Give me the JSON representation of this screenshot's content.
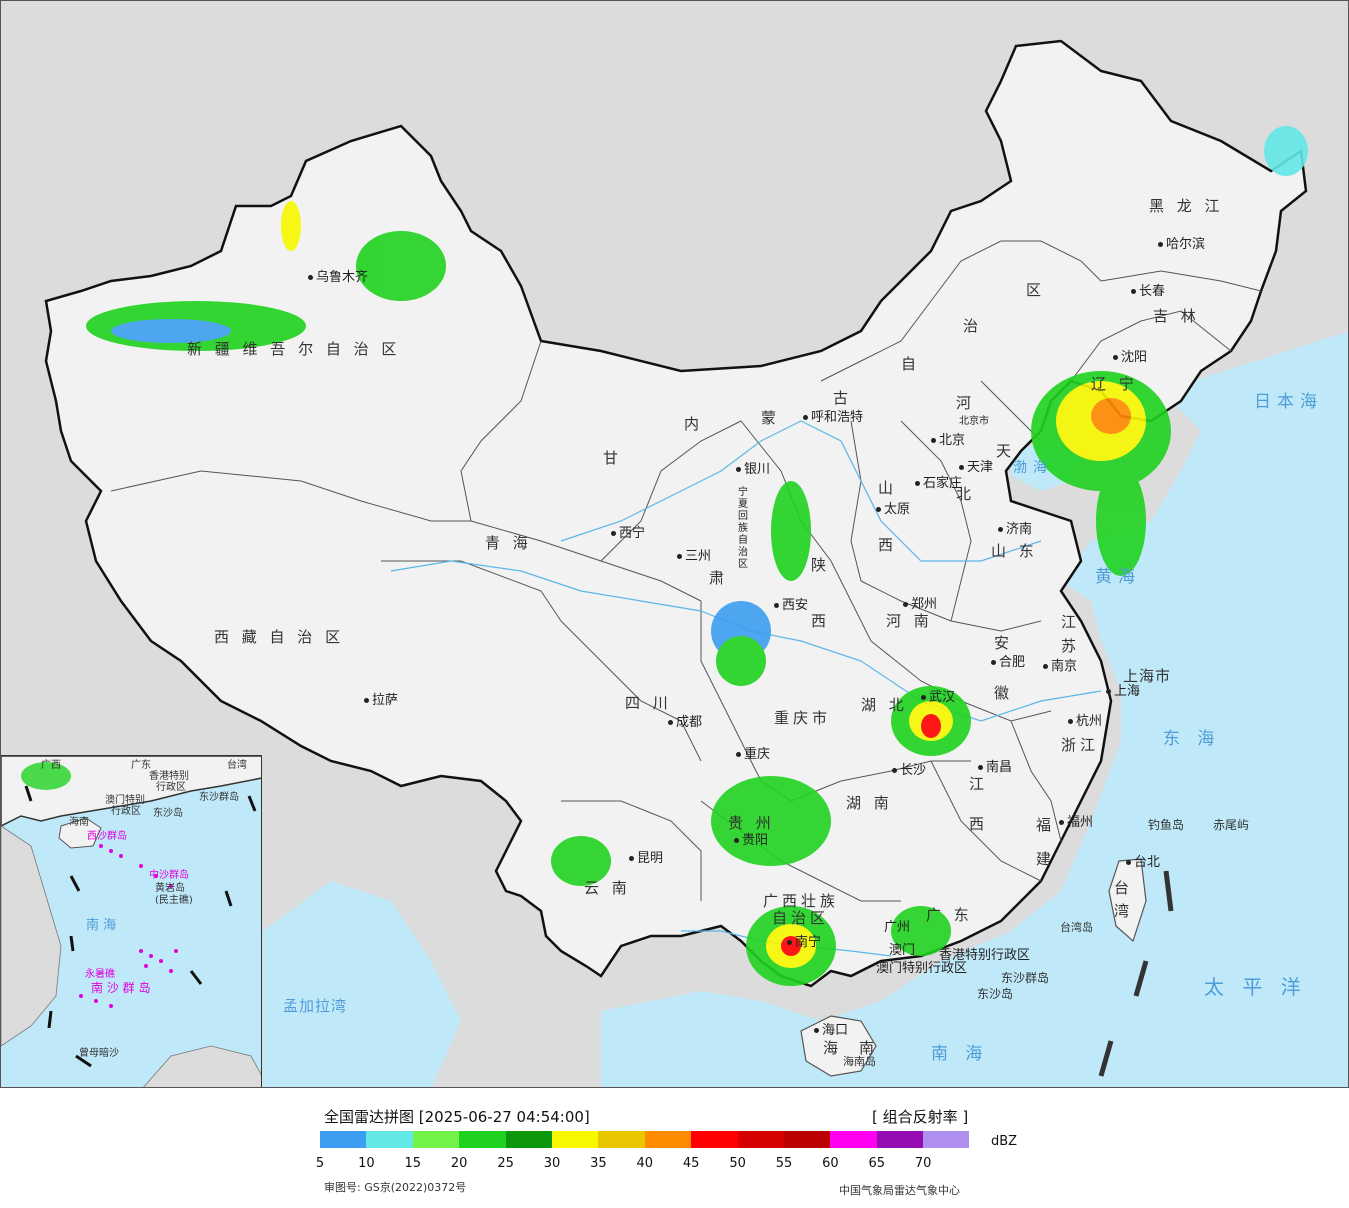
{
  "map": {
    "provinces": [
      {
        "key": "xinjiang",
        "text": "新 疆 维 吾 尔 自 治 区"
      },
      {
        "key": "xizang",
        "text": "西 藏 自 治 区"
      },
      {
        "key": "qinghai",
        "text": "青       海"
      },
      {
        "key": "gansu",
        "text": "甘"
      },
      {
        "key": "sichuan",
        "text": "四      川"
      },
      {
        "key": "yunnan",
        "text": "云      南"
      },
      {
        "key": "neimeng_1",
        "text": "内"
      },
      {
        "key": "neimeng_2",
        "text": "蒙"
      },
      {
        "key": "neimeng_3",
        "text": "古"
      },
      {
        "key": "neimeng_4",
        "text": "自"
      },
      {
        "key": "neimeng_5",
        "text": "治"
      },
      {
        "key": "neimeng_6",
        "text": "区"
      },
      {
        "key": "heilongjiang",
        "text": "黑  龙  江"
      },
      {
        "key": "jilin",
        "text": "吉   林"
      },
      {
        "key": "liaoning",
        "text": "辽  宁"
      },
      {
        "key": "hebei",
        "text": "河"
      },
      {
        "key": "hebei2",
        "text": "北"
      },
      {
        "key": "shanxi",
        "text": "山"
      },
      {
        "key": "shanxi2",
        "text": "西"
      },
      {
        "key": "shandong",
        "text": "山    东"
      },
      {
        "key": "henan",
        "text": "河    南"
      },
      {
        "key": "shaanxi",
        "text": "陕"
      },
      {
        "key": "shaanxi2",
        "text": "西"
      },
      {
        "key": "ningxia",
        "text": "宁夏回族自治区"
      },
      {
        "key": "chongqing",
        "text": "重庆市"
      },
      {
        "key": "hubei",
        "text": "湖     北"
      },
      {
        "key": "hunan",
        "text": "湖     南"
      },
      {
        "key": "guizhou",
        "text": "贵     州"
      },
      {
        "key": "guangxi",
        "text": "广西壮族"
      },
      {
        "key": "guangxi2",
        "text": "自治区"
      },
      {
        "key": "guangdong",
        "text": "广    东"
      },
      {
        "key": "jiangxi",
        "text": "江"
      },
      {
        "key": "jiangxi2",
        "text": "西"
      },
      {
        "key": "anhui",
        "text": "安"
      },
      {
        "key": "anhui2",
        "text": "徽"
      },
      {
        "key": "jiangsu",
        "text": "江"
      },
      {
        "key": "jiangsu2",
        "text": "苏"
      },
      {
        "key": "zhejiang",
        "text": "浙江"
      },
      {
        "key": "fujian",
        "text": "福"
      },
      {
        "key": "fujian2",
        "text": "建"
      },
      {
        "key": "taiwan",
        "text": "台"
      },
      {
        "key": "taiwan2",
        "text": "湾"
      },
      {
        "key": "hainan",
        "text": "海"
      },
      {
        "key": "hainan2",
        "text": "南"
      },
      {
        "key": "shanghai",
        "text": "上海市"
      },
      {
        "key": "tianjin",
        "text": "天"
      },
      {
        "key": "gansu2",
        "text": "肃"
      }
    ],
    "cities": [
      {
        "key": "urumqi",
        "text": "乌鲁木齐"
      },
      {
        "key": "lhasa",
        "text": "拉萨"
      },
      {
        "key": "xining",
        "text": "西宁"
      },
      {
        "key": "lanzhou",
        "text": "三州"
      },
      {
        "key": "yinchuan",
        "text": "银川"
      },
      {
        "key": "huhehaote",
        "text": "呼和浩特"
      },
      {
        "key": "beijing",
        "text": "北京"
      },
      {
        "key": "tianjin_c",
        "text": "天津"
      },
      {
        "key": "shijiazhuang",
        "text": "石家庄"
      },
      {
        "key": "taiyuan",
        "text": "太原"
      },
      {
        "key": "jinan",
        "text": "济南"
      },
      {
        "key": "zhengzhou",
        "text": "郑州"
      },
      {
        "key": "xian",
        "text": "西安"
      },
      {
        "key": "chengdu",
        "text": "成都"
      },
      {
        "key": "chongqing_c",
        "text": "重庆"
      },
      {
        "key": "guiyang",
        "text": "贵阳"
      },
      {
        "key": "kunming",
        "text": "昆明"
      },
      {
        "key": "nanning",
        "text": "南宁"
      },
      {
        "key": "guangzhou",
        "text": "广州"
      },
      {
        "key": "changsha",
        "text": "长沙"
      },
      {
        "key": "wuhan",
        "text": "武汉"
      },
      {
        "key": "hefei",
        "text": "合肥"
      },
      {
        "key": "nanjing",
        "text": "南京"
      },
      {
        "key": "shanghai_c",
        "text": "上海"
      },
      {
        "key": "hangzhou",
        "text": "杭州"
      },
      {
        "key": "nanchang",
        "text": "南昌"
      },
      {
        "key": "fuzhou",
        "text": "福州"
      },
      {
        "key": "taibei",
        "text": "台北"
      },
      {
        "key": "haikou",
        "text": "海口"
      },
      {
        "key": "shenyang",
        "text": "沈阳"
      },
      {
        "key": "changchun",
        "text": "长春"
      },
      {
        "key": "haerbin",
        "text": "哈尔滨"
      },
      {
        "key": "aomen",
        "text": "澳门"
      }
    ],
    "other_labels": [
      {
        "key": "hk_sar",
        "text": "香港特别行政区"
      },
      {
        "key": "macau_sar",
        "text": "澳门特别行政区"
      },
      {
        "key": "diaoyu",
        "text": "钓鱼岛"
      },
      {
        "key": "chiwei",
        "text": "赤尾屿"
      },
      {
        "key": "taiwan_isl",
        "text": "台湾岛"
      },
      {
        "key": "dongsha_qd",
        "text": "东沙群岛"
      },
      {
        "key": "dongsha",
        "text": "东沙岛"
      },
      {
        "key": "hainan_isl",
        "text": "海南岛"
      },
      {
        "key": "beijing_small",
        "text": "北京市"
      }
    ],
    "seas": [
      {
        "key": "riben",
        "text": "日本海"
      },
      {
        "key": "bohai",
        "text": "渤海"
      },
      {
        "key": "huanghai",
        "text": "黄海"
      },
      {
        "key": "donghai",
        "text": "东 海"
      },
      {
        "key": "taipingyang",
        "text": "太 平 洋"
      },
      {
        "key": "nanhai",
        "text": "南   海"
      },
      {
        "key": "mengjiala",
        "text": "孟加拉湾"
      }
    ],
    "inset_labels": [
      {
        "key": "i_hk",
        "text": "香港特别"
      },
      {
        "key": "i_hk2",
        "text": "行政区"
      },
      {
        "key": "i_macau",
        "text": "澳门特别"
      },
      {
        "key": "i_macau2",
        "text": "行政区"
      },
      {
        "key": "i_dongsha",
        "text": "东沙群岛"
      },
      {
        "key": "i_dongsha2",
        "text": "东沙岛"
      },
      {
        "key": "i_taiwan",
        "text": "台湾"
      },
      {
        "key": "i_hainan",
        "text": "海南"
      },
      {
        "key": "i_xisha",
        "text": "西沙群岛"
      },
      {
        "key": "i_zhongsha",
        "text": "中沙群岛"
      },
      {
        "key": "i_huangyan",
        "text": "黄岩岛"
      },
      {
        "key": "i_minzhu",
        "text": "(民主礁)"
      },
      {
        "key": "i_nanhai",
        "text": "南  海"
      },
      {
        "key": "i_nansha",
        "text": "南 沙 群 岛"
      },
      {
        "key": "i_yongshu",
        "text": "永暑礁"
      },
      {
        "key": "i_zengmu",
        "text": "曾母暗沙"
      },
      {
        "key": "i_guangdong",
        "text": "广东"
      },
      {
        "key": "i_guangxi",
        "text": "广西"
      }
    ]
  },
  "legend": {
    "title": "全国雷达拼图 [2025-06-27 04:54:00]",
    "product": "[ 组合反射率 ]",
    "unit": "dBZ",
    "tick_labels": [
      "5",
      "10",
      "15",
      "20",
      "25",
      "30",
      "35",
      "40",
      "45",
      "50",
      "55",
      "60",
      "65",
      "70"
    ],
    "colors": [
      "#3d9df0",
      "#63e7e7",
      "#73f24a",
      "#1fd21f",
      "#0d970d",
      "#f7f700",
      "#e8c700",
      "#ff8b00",
      "#ff0000",
      "#d60000",
      "#bb0000",
      "#ff00f0",
      "#960bb2",
      "#ae8ff0"
    ],
    "approval": "审图号: GS京(2022)0372号",
    "credit": "中国气象局雷达气象中心"
  },
  "colors": {
    "land": "#f2f2f2",
    "outside": "#dcdcdc",
    "sea": "#bfe9f9",
    "border": "#111111"
  }
}
